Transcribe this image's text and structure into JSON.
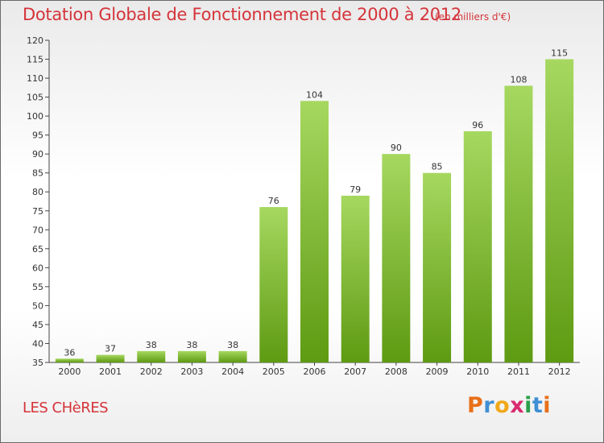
{
  "header": {
    "title": "Dotation Globale de Fonctionnement de 2000 à 2012",
    "subtitle": "(en milliers d'€)"
  },
  "footer": {
    "place": "LES CHèRES",
    "logo": "Proxiti"
  },
  "colors": {
    "title": "#d4343a",
    "bar_light": "#a6d860",
    "bar_dark": "#5e9a12",
    "logo": [
      "#e8701a",
      "#3f8fd4",
      "#f0a81a",
      "#d92a6f",
      "#2aa04a",
      "#3f8fd4",
      "#e8701a"
    ]
  },
  "chart_data": {
    "type": "bar",
    "categories": [
      "2000",
      "2001",
      "2002",
      "2003",
      "2004",
      "2005",
      "2006",
      "2007",
      "2008",
      "2009",
      "2010",
      "2011",
      "2012"
    ],
    "values": [
      36,
      37,
      38,
      38,
      38,
      76,
      104,
      79,
      90,
      85,
      96,
      108,
      115
    ],
    "ylim": [
      35,
      120
    ],
    "yticks": [
      35,
      40,
      45,
      50,
      55,
      60,
      65,
      70,
      75,
      80,
      85,
      90,
      95,
      100,
      105,
      110,
      115,
      120
    ],
    "grid": false,
    "data_labels": true
  }
}
